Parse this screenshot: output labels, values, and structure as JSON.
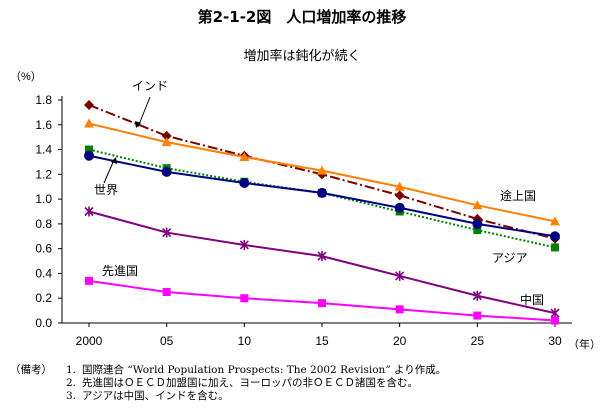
{
  "page": {
    "title": "第2-1-2図　人口増加率の推移",
    "subtitle": "増加率は鈍化が続く"
  },
  "chart_data": {
    "type": "line",
    "title": "増加率は鈍化が続く",
    "y_unit": "（%）",
    "x_unit": "（年）",
    "categories": [
      "2000",
      "05",
      "10",
      "15",
      "20",
      "25",
      "30"
    ],
    "ylim": [
      0.0,
      1.8
    ],
    "yticks": [
      "0.0",
      "0.2",
      "0.4",
      "0.6",
      "0.8",
      "1.0",
      "1.2",
      "1.4",
      "1.6",
      "1.8"
    ],
    "grid": false,
    "legend": "inline labels",
    "series": [
      {
        "name": "インド",
        "values": [
          1.76,
          1.51,
          1.35,
          1.2,
          1.03,
          0.84,
          0.68
        ],
        "color": "#7b0000",
        "dash": "dashdot",
        "marker": "diamond"
      },
      {
        "name": "途上国",
        "values": [
          1.61,
          1.46,
          1.34,
          1.23,
          1.1,
          0.95,
          0.82
        ],
        "color": "#ff7f00",
        "dash": "solid",
        "marker": "triangle"
      },
      {
        "name": "アジア",
        "values": [
          1.4,
          1.25,
          1.14,
          1.05,
          0.9,
          0.75,
          0.61
        ],
        "color": "#008000",
        "dash": "dotted",
        "marker": "square"
      },
      {
        "name": "世界",
        "values": [
          1.35,
          1.22,
          1.13,
          1.05,
          0.93,
          0.8,
          0.7
        ],
        "color": "#000080",
        "dash": "solid",
        "marker": "circle"
      },
      {
        "name": "中国",
        "values": [
          0.9,
          0.73,
          0.63,
          0.54,
          0.38,
          0.22,
          0.08
        ],
        "color": "#800080",
        "dash": "solid",
        "marker": "asterisk"
      },
      {
        "name": "先進国",
        "values": [
          0.34,
          0.25,
          0.2,
          0.16,
          0.11,
          0.06,
          0.02
        ],
        "color": "#ff00ff",
        "dash": "solid",
        "marker": "square"
      }
    ]
  },
  "notes": {
    "head": "（備考）",
    "items": [
      {
        "num": "1.",
        "text": "国際連合 “World Population Prospects: The 2002 Revision” より作成。"
      },
      {
        "num": "2.",
        "text": "先進国はＯＥＣＤ加盟国に加え、ヨーロッパの非ＯＥＣＤ諸国を含む。"
      },
      {
        "num": "3.",
        "text": "アジアは中国、インドを含む。"
      }
    ]
  }
}
